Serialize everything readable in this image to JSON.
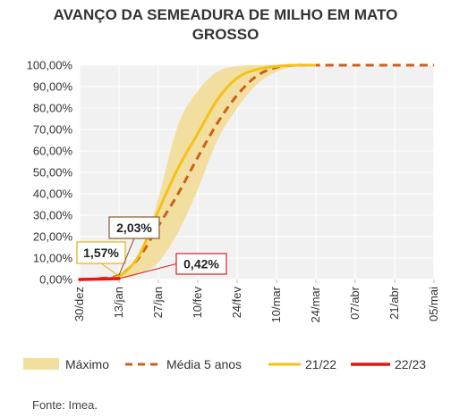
{
  "title": {
    "line1": "AVANÇO DA SEMEADURA DE MILHO EM MATO",
    "line2": "GROSSO"
  },
  "source": "Fonte: Imea.",
  "colors": {
    "maximo_band": "#f2df9f",
    "media": "#cc5f1a",
    "s2122": "#f5c116",
    "s2223": "#ee1111",
    "plot_bg": "#f1f1f1",
    "grid": "#ffffff",
    "callout_2122_border": "#e0b21c",
    "callout_media_border": "#8a5a2b",
    "callout_2223_border": "#d82020"
  },
  "chart_data": {
    "type": "area",
    "title": "AVANÇO DA SEMEADURA DE MILHO EM MATO GROSSO",
    "x_tick_labels": [
      "30/dez",
      "13/jan",
      "27/jan",
      "10/fev",
      "24/fev",
      "10/mar",
      "24/mar",
      "07/abr",
      "21/abr",
      "05/mai"
    ],
    "x_domain": [
      0,
      126
    ],
    "ylim": [
      0,
      100
    ],
    "y_tick_labels": [
      "0,00%",
      "10,00%",
      "20,00%",
      "30,00%",
      "40,00%",
      "50,00%",
      "60,00%",
      "70,00%",
      "80,00%",
      "90,00%",
      "100,00%"
    ],
    "y_ticks": [
      0,
      10,
      20,
      30,
      40,
      50,
      60,
      70,
      80,
      90,
      100
    ],
    "x_unit": "days since 30/dez",
    "series": [
      {
        "name": "Máximo",
        "kind": "band",
        "x": [
          7,
          10,
          14,
          18,
          22,
          28,
          35,
          42,
          49,
          56,
          63,
          70,
          77,
          84
        ],
        "upper": [
          0,
          0.5,
          1.5,
          5,
          12,
          38,
          72,
          88,
          97,
          99.5,
          100,
          100,
          100,
          100
        ],
        "lower": [
          0,
          0,
          0.3,
          1,
          3,
          8,
          22,
          42,
          65,
          80,
          91,
          97,
          99.5,
          100
        ]
      },
      {
        "name": "Média 5 anos",
        "kind": "dashed-line",
        "x": [
          7,
          14,
          21,
          28,
          35,
          42,
          49,
          56,
          63,
          70,
          77,
          84,
          126
        ],
        "y": [
          0.5,
          2.03,
          10,
          25,
          40,
          57,
          73,
          86,
          95,
          99,
          100,
          100,
          100
        ]
      },
      {
        "name": "21/22",
        "kind": "line",
        "x": [
          7,
          14,
          21,
          28,
          35,
          42,
          49,
          56,
          63,
          70,
          77,
          84
        ],
        "y": [
          0.3,
          1.57,
          11,
          32,
          52,
          68,
          84,
          94,
          98,
          99.5,
          100,
          100
        ]
      },
      {
        "name": "22/23",
        "kind": "line",
        "x": [
          0,
          14
        ],
        "y": [
          0,
          0.42
        ]
      }
    ],
    "callouts": [
      {
        "text": "1,57%",
        "series": "21/22",
        "x": 14,
        "y": 1.57
      },
      {
        "text": "2,03%",
        "series": "Média 5 anos",
        "x": 14,
        "y": 2.03
      },
      {
        "text": "0,42%",
        "series": "22/23",
        "x": 14,
        "y": 0.42
      }
    ],
    "legend": {
      "position": "bottom",
      "items": [
        "Máximo",
        "Média 5 anos",
        "21/22",
        "22/23"
      ]
    },
    "grid": true
  }
}
